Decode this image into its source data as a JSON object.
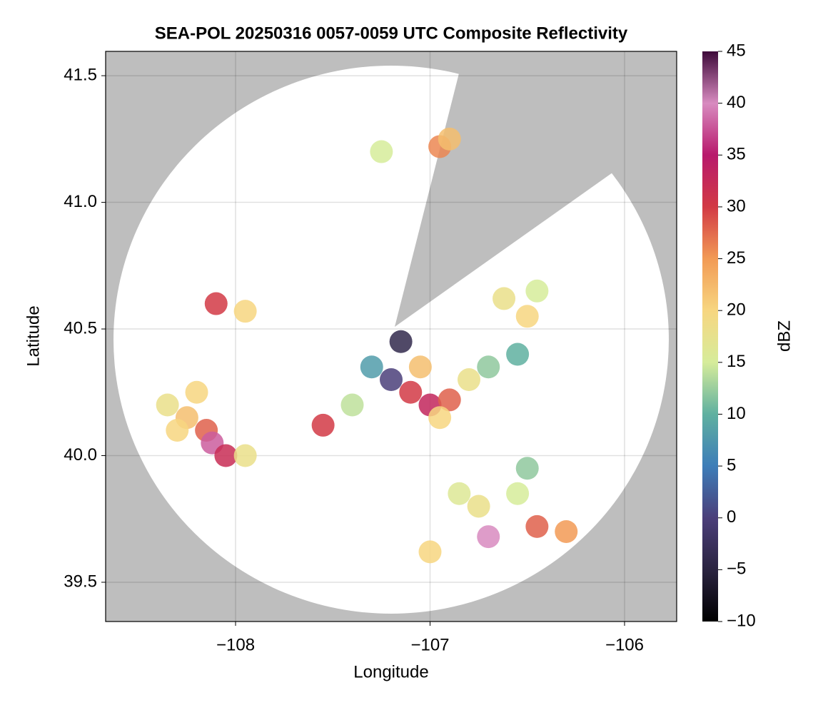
{
  "chart_data": {
    "type": "radar-map",
    "title": "SEA-POL 20250316 0057-0059 UTC Composite Reflectivity",
    "x_label": "Longitude",
    "y_label": "Latitude",
    "colorbar_label": "dBZ",
    "xlim": [
      -108.668,
      -105.732
    ],
    "ylim": [
      39.345,
      41.596
    ],
    "xticks": [
      {
        "value": -108,
        "label": "−108"
      },
      {
        "value": -107,
        "label": "−107"
      },
      {
        "value": -106,
        "label": "−106"
      }
    ],
    "yticks": [
      {
        "value": 39.5,
        "label": "39.5"
      },
      {
        "value": 40.0,
        "label": "40.0"
      },
      {
        "value": 40.5,
        "label": "40.5"
      },
      {
        "value": 41.0,
        "label": "41.0"
      },
      {
        "value": 41.5,
        "label": "41.5"
      }
    ],
    "clim": [
      -10,
      45
    ],
    "cticks": [
      {
        "value": -10,
        "label": "−10"
      },
      {
        "value": -5,
        "label": "−5"
      },
      0,
      5,
      10,
      15,
      20,
      25,
      30,
      35,
      40,
      45
    ],
    "colormap": [
      "#000000",
      "#2a2340",
      "#4b3f7a",
      "#3d7db8",
      "#5fb0a0",
      "#d6ec9a",
      "#f7d680",
      "#f29a55",
      "#d23a45",
      "#b8196c",
      "#d88bc0",
      "#3e0a3a"
    ],
    "grid": true,
    "x": [
      -108.25,
      -108.3,
      -108.15,
      -108.12,
      -108.05,
      -108.35,
      -108.2,
      -107.95,
      -107.2,
      -107.1,
      -107.0,
      -106.9,
      -106.8,
      -106.7,
      -107.3,
      -107.05,
      -106.95,
      -107.4,
      -107.55,
      -107.15,
      -106.62,
      -106.5,
      -106.45,
      -106.55,
      -106.95,
      -106.9,
      -107.25,
      -108.1,
      -107.95,
      -106.7,
      -106.75,
      -106.55,
      -106.3,
      -106.45,
      -106.5,
      -107.0,
      -106.85
    ],
    "y": [
      40.15,
      40.1,
      40.1,
      40.05,
      40.0,
      40.2,
      40.25,
      40.0,
      40.3,
      40.25,
      40.2,
      40.22,
      40.3,
      40.35,
      40.35,
      40.35,
      40.15,
      40.2,
      40.12,
      40.45,
      40.62,
      40.55,
      40.65,
      40.4,
      41.22,
      41.25,
      41.2,
      40.6,
      40.57,
      39.68,
      39.8,
      39.85,
      39.7,
      39.72,
      39.95,
      39.62,
      39.85
    ],
    "values": [
      22,
      20,
      28,
      38,
      32,
      18,
      20,
      18,
      0,
      30,
      33,
      28,
      18,
      12,
      8,
      22,
      20,
      14,
      30,
      -4,
      18,
      20,
      15,
      10,
      26,
      22,
      15,
      30,
      20,
      40,
      18,
      15,
      25,
      28,
      12,
      20,
      16
    ]
  }
}
